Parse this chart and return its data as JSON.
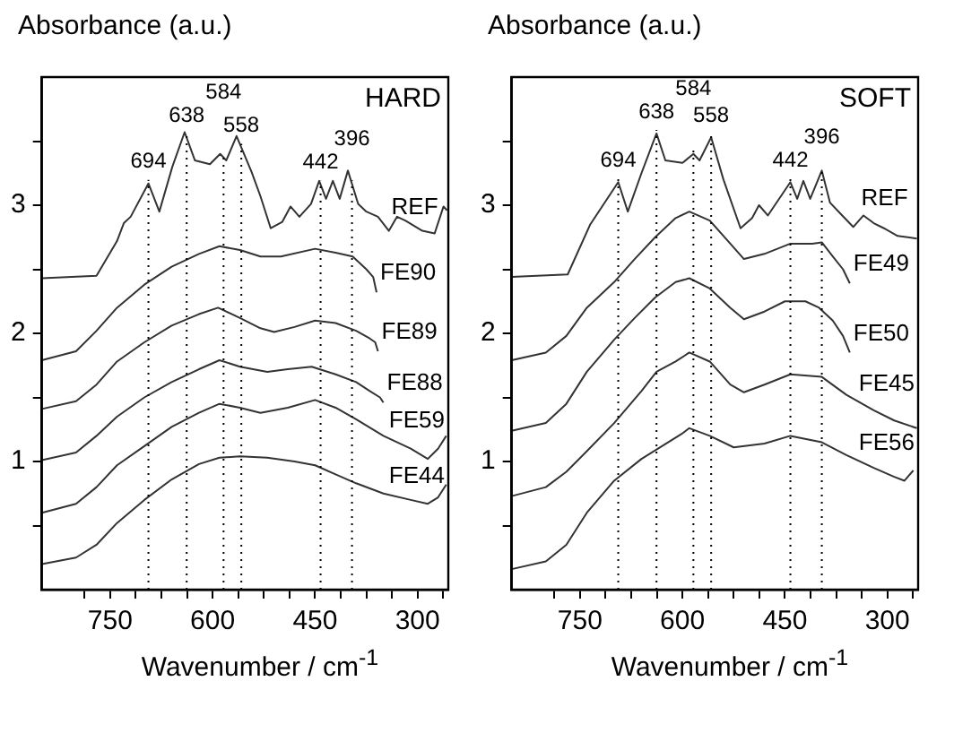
{
  "chart_data": [
    {
      "type": "line",
      "title": "HARD",
      "xlabel": "Wavenumber / cm$^{-1}$",
      "ylabel": "Absorbance (a.u.)",
      "legend": false,
      "grid": false,
      "xlim": [
        850,
        255
      ],
      "ylim": [
        0,
        4
      ],
      "xticks": [
        {
          "value": 787.5,
          "label": null
        },
        750,
        {
          "value": 712.5,
          "label": null
        },
        {
          "value": 675,
          "label": null
        },
        {
          "value": 637.5,
          "label": null
        },
        600,
        {
          "value": 562.5,
          "label": null
        },
        {
          "value": 525,
          "label": null
        },
        {
          "value": 487.5,
          "label": null
        },
        450,
        {
          "value": 412.5,
          "label": null
        },
        {
          "value": 375,
          "label": null
        },
        {
          "value": 337.5,
          "label": null
        },
        300,
        {
          "value": 262.5,
          "label": null
        }
      ],
      "yticks": [
        {
          "value": 0.5,
          "label": null
        },
        1,
        {
          "value": 1.5,
          "label": null
        },
        2,
        {
          "value": 2.5,
          "label": null
        },
        3,
        {
          "value": 3.5,
          "label": null
        }
      ],
      "ref_lines": [
        {
          "axis": "x",
          "value": 694,
          "label": "694",
          "line_style": "dotted"
        },
        {
          "axis": "x",
          "value": 638,
          "label": "638",
          "line_style": "dotted"
        },
        {
          "axis": "x",
          "value": 584,
          "label": "584",
          "line_style": "dotted"
        },
        {
          "axis": "x",
          "value": 558,
          "label": "558",
          "line_style": "dotted"
        },
        {
          "axis": "x",
          "value": 442,
          "label": "442",
          "line_style": "dotted"
        },
        {
          "axis": "x",
          "value": 396,
          "label": "396",
          "line_style": "dotted"
        }
      ],
      "series": [
        {
          "name": "REF",
          "color": "#333333",
          "x": [
            850,
            770,
            740,
            730,
            720,
            694,
            678,
            659,
            641,
            626,
            604,
            589,
            580,
            565,
            543,
            530,
            515,
            498,
            486,
            473,
            456,
            444,
            434,
            424,
            414,
            402,
            387,
            375,
            358,
            342,
            330,
            318,
            293,
            275,
            262,
            257
          ],
          "values": [
            2.43,
            2.45,
            2.72,
            2.86,
            2.91,
            3.17,
            2.95,
            3.3,
            3.57,
            3.35,
            3.32,
            3.4,
            3.35,
            3.54,
            3.26,
            3.07,
            2.82,
            2.87,
            2.99,
            2.91,
            3.01,
            3.19,
            3.05,
            3.19,
            3.05,
            3.27,
            3.01,
            2.95,
            2.91,
            2.8,
            2.91,
            2.88,
            2.8,
            2.78,
            2.99,
            2.96
          ]
        },
        {
          "name": "FE90",
          "color": "#333333",
          "x": [
            850,
            800,
            770,
            740,
            700,
            660,
            620,
            590,
            560,
            530,
            500,
            450,
            420,
            395,
            375,
            365,
            360
          ],
          "values": [
            1.79,
            1.86,
            2.02,
            2.2,
            2.38,
            2.52,
            2.62,
            2.68,
            2.65,
            2.6,
            2.6,
            2.66,
            2.63,
            2.6,
            2.5,
            2.44,
            2.32
          ]
        },
        {
          "name": "FE89",
          "color": "#333333",
          "x": [
            850,
            800,
            770,
            740,
            700,
            660,
            620,
            592,
            560,
            530,
            510,
            480,
            450,
            420,
            390,
            370,
            362,
            358
          ],
          "values": [
            1.41,
            1.47,
            1.6,
            1.78,
            1.93,
            2.06,
            2.15,
            2.2,
            2.12,
            2.04,
            2.01,
            2.05,
            2.1,
            2.08,
            2.02,
            1.96,
            1.93,
            1.86
          ]
        },
        {
          "name": "FE88",
          "color": "#333333",
          "x": [
            850,
            800,
            770,
            740,
            700,
            660,
            620,
            590,
            560,
            520,
            490,
            455,
            420,
            390,
            370,
            355,
            350
          ],
          "values": [
            1.01,
            1.07,
            1.2,
            1.35,
            1.5,
            1.62,
            1.72,
            1.79,
            1.74,
            1.7,
            1.72,
            1.74,
            1.68,
            1.62,
            1.55,
            1.5,
            1.46
          ]
        },
        {
          "name": "FE59",
          "color": "#333333",
          "x": [
            850,
            800,
            770,
            740,
            700,
            660,
            620,
            590,
            560,
            530,
            490,
            450,
            420,
            390,
            350,
            310,
            285,
            270,
            258
          ],
          "values": [
            0.6,
            0.67,
            0.8,
            0.97,
            1.12,
            1.27,
            1.38,
            1.45,
            1.42,
            1.38,
            1.42,
            1.48,
            1.42,
            1.33,
            1.2,
            1.1,
            1.02,
            1.1,
            1.2
          ]
        },
        {
          "name": "FE44",
          "color": "#333333",
          "x": [
            850,
            800,
            770,
            740,
            700,
            660,
            620,
            590,
            560,
            520,
            480,
            450,
            420,
            390,
            350,
            310,
            285,
            270,
            258
          ],
          "values": [
            0.2,
            0.25,
            0.35,
            0.52,
            0.7,
            0.86,
            0.98,
            1.03,
            1.04,
            1.03,
            1.0,
            0.97,
            0.9,
            0.83,
            0.75,
            0.7,
            0.67,
            0.72,
            0.82
          ]
        }
      ]
    },
    {
      "type": "line",
      "title": "SOFT",
      "xlabel": "Wavenumber / cm$^{-1}$",
      "ylabel": "Absorbance (a.u.)",
      "legend": false,
      "grid": false,
      "xlim": [
        850,
        255
      ],
      "ylim": [
        0,
        4
      ],
      "xticks": [
        {
          "value": 787.5,
          "label": null
        },
        750,
        {
          "value": 712.5,
          "label": null
        },
        {
          "value": 675,
          "label": null
        },
        {
          "value": 637.5,
          "label": null
        },
        600,
        {
          "value": 562.5,
          "label": null
        },
        {
          "value": 525,
          "label": null
        },
        {
          "value": 487.5,
          "label": null
        },
        450,
        {
          "value": 412.5,
          "label": null
        },
        {
          "value": 375,
          "label": null
        },
        {
          "value": 337.5,
          "label": null
        },
        300,
        {
          "value": 262.5,
          "label": null
        }
      ],
      "yticks": [
        {
          "value": 0.5,
          "label": null
        },
        1,
        {
          "value": 1.5,
          "label": null
        },
        2,
        {
          "value": 2.5,
          "label": null
        },
        3,
        {
          "value": 3.5,
          "label": null
        }
      ],
      "ref_lines": [
        {
          "axis": "x",
          "value": 694,
          "label": "694",
          "line_style": "dotted"
        },
        {
          "axis": "x",
          "value": 638,
          "label": "638",
          "line_style": "dotted"
        },
        {
          "axis": "x",
          "value": 584,
          "label": "584",
          "line_style": "dotted"
        },
        {
          "axis": "x",
          "value": 558,
          "label": "558",
          "line_style": "dotted"
        },
        {
          "axis": "x",
          "value": 442,
          "label": "442",
          "line_style": "dotted"
        },
        {
          "axis": "x",
          "value": 396,
          "label": "396",
          "line_style": "dotted"
        }
      ],
      "series": [
        {
          "name": "REF",
          "color": "#333333",
          "x": [
            850,
            768,
            735,
            694,
            680,
            660,
            638,
            625,
            600,
            584,
            575,
            558,
            540,
            515,
            498,
            488,
            475,
            442,
            432,
            423,
            413,
            396,
            384,
            368,
            350,
            335,
            320,
            305,
            285,
            257
          ],
          "values": [
            2.44,
            2.46,
            2.85,
            3.18,
            2.95,
            3.25,
            3.56,
            3.35,
            3.33,
            3.4,
            3.35,
            3.53,
            3.2,
            2.82,
            2.9,
            3.0,
            2.92,
            3.18,
            3.05,
            3.19,
            3.05,
            3.27,
            3.02,
            2.93,
            2.83,
            2.92,
            2.86,
            2.82,
            2.76,
            2.74
          ]
        },
        {
          "name": "FE49",
          "color": "#333333",
          "x": [
            850,
            800,
            770,
            740,
            700,
            670,
            640,
            610,
            590,
            560,
            530,
            510,
            480,
            442,
            410,
            396,
            380,
            365,
            355
          ],
          "values": [
            1.79,
            1.85,
            1.98,
            2.2,
            2.4,
            2.58,
            2.75,
            2.9,
            2.95,
            2.88,
            2.7,
            2.58,
            2.62,
            2.7,
            2.7,
            2.71,
            2.6,
            2.5,
            2.39
          ]
        },
        {
          "name": "FE50",
          "color": "#333333",
          "x": [
            850,
            800,
            770,
            740,
            700,
            670,
            640,
            610,
            590,
            560,
            530,
            510,
            480,
            450,
            420,
            400,
            380,
            365,
            355
          ],
          "values": [
            1.24,
            1.3,
            1.45,
            1.7,
            1.95,
            2.12,
            2.28,
            2.4,
            2.43,
            2.35,
            2.2,
            2.11,
            2.17,
            2.25,
            2.25,
            2.2,
            2.1,
            1.98,
            1.85
          ]
        },
        {
          "name": "FE45",
          "color": "#333333",
          "x": [
            850,
            800,
            770,
            740,
            700,
            660,
            638,
            610,
            590,
            560,
            530,
            510,
            480,
            442,
            396,
            360,
            320,
            290,
            257
          ],
          "values": [
            0.73,
            0.8,
            0.92,
            1.08,
            1.3,
            1.55,
            1.7,
            1.78,
            1.85,
            1.78,
            1.6,
            1.54,
            1.6,
            1.68,
            1.66,
            1.52,
            1.4,
            1.32,
            1.26
          ]
        },
        {
          "name": "FE56",
          "color": "#333333",
          "x": [
            850,
            800,
            770,
            740,
            700,
            660,
            630,
            600,
            590,
            560,
            525,
            480,
            442,
            396,
            360,
            320,
            290,
            275,
            262
          ],
          "values": [
            0.16,
            0.22,
            0.35,
            0.6,
            0.85,
            1.02,
            1.12,
            1.22,
            1.26,
            1.2,
            1.11,
            1.14,
            1.2,
            1.15,
            1.05,
            0.95,
            0.88,
            0.85,
            0.93
          ]
        }
      ]
    }
  ]
}
